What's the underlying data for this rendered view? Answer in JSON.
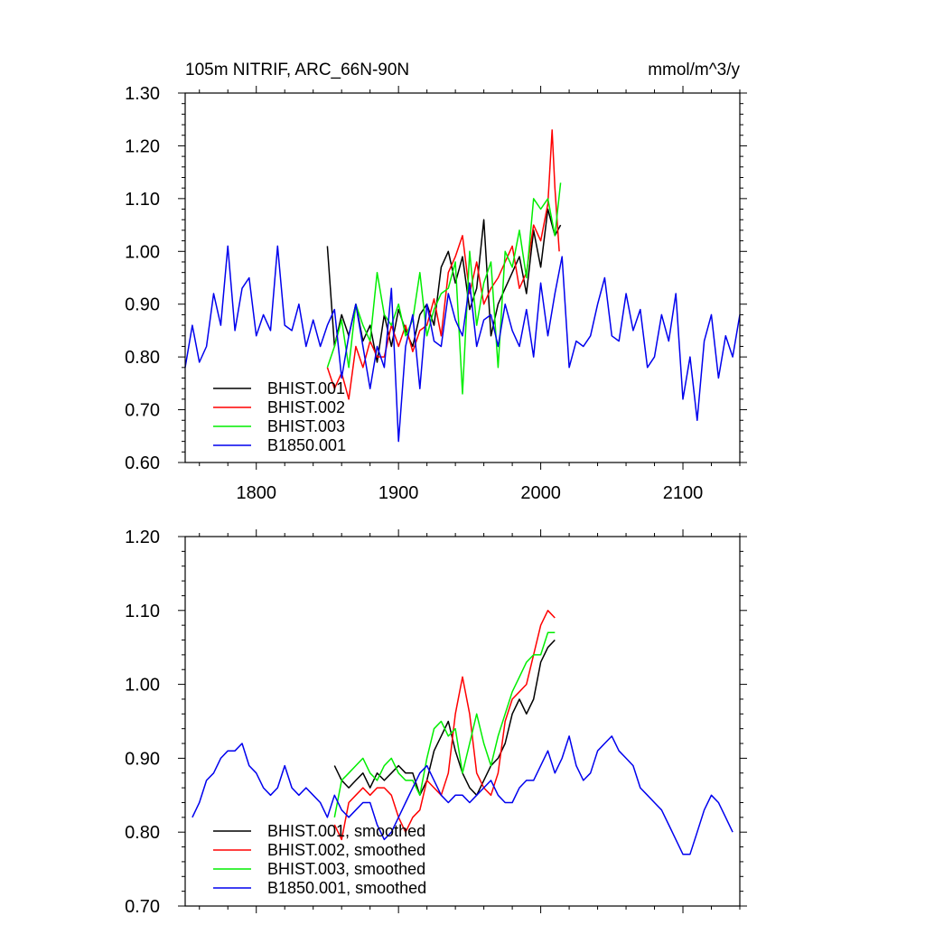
{
  "chart_data": [
    {
      "type": "line",
      "title": "105m NITRIF, ARC_66N-90N",
      "units": "mmol/m^3/y",
      "xlim": [
        1750,
        2140
      ],
      "ylim": [
        0.6,
        1.3
      ],
      "xticks": [
        1800,
        1900,
        2000,
        2100
      ],
      "xtick_labels": [
        "1800",
        "1900",
        "2000",
        "2100"
      ],
      "yticks": [
        0.6,
        0.7,
        0.8,
        0.9,
        1.0,
        1.1,
        1.2,
        1.3
      ],
      "ytick_labels": [
        "0.60",
        "0.70",
        "0.80",
        "0.90",
        "1.00",
        "1.10",
        "1.20",
        "1.30"
      ],
      "legend": "bottom-left",
      "series": [
        {
          "name": "BHIST.001",
          "color": "#000000",
          "x": [
            1850,
            1855,
            1860,
            1865,
            1870,
            1875,
            1880,
            1885,
            1890,
            1895,
            1900,
            1905,
            1910,
            1915,
            1920,
            1925,
            1930,
            1935,
            1940,
            1945,
            1950,
            1955,
            1960,
            1965,
            1970,
            1975,
            1980,
            1985,
            1990,
            1995,
            2000,
            2005,
            2010,
            2014
          ],
          "y": [
            1.01,
            0.82,
            0.88,
            0.84,
            0.9,
            0.83,
            0.86,
            0.79,
            0.88,
            0.82,
            0.89,
            0.85,
            0.82,
            0.88,
            0.9,
            0.86,
            0.97,
            1.0,
            0.94,
            0.99,
            0.89,
            0.93,
            1.06,
            0.84,
            0.9,
            0.93,
            0.96,
            0.99,
            0.92,
            1.04,
            0.97,
            1.08,
            1.03,
            1.05
          ]
        },
        {
          "name": "BHIST.002",
          "color": "#ff0000",
          "x": [
            1850,
            1855,
            1860,
            1865,
            1870,
            1875,
            1880,
            1885,
            1890,
            1895,
            1900,
            1905,
            1910,
            1915,
            1920,
            1925,
            1930,
            1935,
            1940,
            1945,
            1950,
            1955,
            1960,
            1965,
            1970,
            1975,
            1980,
            1985,
            1990,
            1995,
            2000,
            2005,
            2008,
            2010,
            2013
          ],
          "y": [
            0.78,
            0.74,
            0.77,
            0.72,
            0.82,
            0.78,
            0.83,
            0.8,
            0.8,
            0.86,
            0.82,
            0.86,
            0.81,
            0.85,
            0.86,
            0.91,
            0.84,
            0.96,
            0.99,
            1.03,
            0.92,
            0.98,
            0.9,
            0.93,
            0.95,
            0.98,
            1.01,
            0.93,
            0.96,
            1.05,
            1.02,
            1.09,
            1.23,
            1.12,
            1.0
          ]
        },
        {
          "name": "BHIST.003",
          "color": "#00ee00",
          "x": [
            1850,
            1855,
            1860,
            1865,
            1870,
            1875,
            1880,
            1885,
            1890,
            1895,
            1900,
            1905,
            1910,
            1915,
            1920,
            1925,
            1930,
            1935,
            1940,
            1945,
            1950,
            1955,
            1960,
            1965,
            1970,
            1975,
            1980,
            1985,
            1990,
            1995,
            2000,
            2005,
            2010,
            2014
          ],
          "y": [
            0.78,
            0.82,
            0.87,
            0.78,
            0.9,
            0.86,
            0.83,
            0.96,
            0.88,
            0.86,
            0.9,
            0.84,
            0.87,
            0.96,
            0.84,
            0.89,
            0.92,
            0.93,
            0.98,
            0.73,
            1.0,
            0.86,
            0.94,
            0.98,
            0.78,
            1.0,
            0.97,
            1.04,
            0.95,
            1.1,
            1.08,
            1.1,
            1.03,
            1.13
          ]
        },
        {
          "name": "B1850.001",
          "color": "#0000ee",
          "x": [
            1750,
            1755,
            1760,
            1765,
            1770,
            1775,
            1780,
            1785,
            1790,
            1795,
            1800,
            1805,
            1810,
            1815,
            1820,
            1825,
            1830,
            1835,
            1840,
            1845,
            1850,
            1855,
            1860,
            1865,
            1870,
            1875,
            1880,
            1885,
            1890,
            1895,
            1900,
            1905,
            1910,
            1915,
            1920,
            1925,
            1930,
            1935,
            1940,
            1945,
            1950,
            1955,
            1960,
            1965,
            1970,
            1975,
            1980,
            1985,
            1990,
            1995,
            2000,
            2005,
            2010,
            2015,
            2020,
            2025,
            2030,
            2035,
            2040,
            2045,
            2050,
            2055,
            2060,
            2065,
            2070,
            2075,
            2080,
            2085,
            2090,
            2095,
            2100,
            2105,
            2110,
            2115,
            2120,
            2125,
            2130,
            2135,
            2140
          ],
          "y": [
            0.78,
            0.86,
            0.79,
            0.82,
            0.92,
            0.86,
            1.01,
            0.85,
            0.93,
            0.95,
            0.84,
            0.88,
            0.85,
            1.01,
            0.86,
            0.85,
            0.9,
            0.82,
            0.87,
            0.82,
            0.86,
            0.89,
            0.76,
            0.84,
            0.9,
            0.82,
            0.74,
            0.82,
            0.78,
            0.93,
            0.64,
            0.82,
            0.88,
            0.74,
            0.9,
            0.83,
            0.82,
            0.92,
            0.87,
            0.84,
            0.94,
            0.82,
            0.87,
            0.88,
            0.82,
            0.9,
            0.85,
            0.82,
            0.89,
            0.8,
            0.94,
            0.84,
            0.92,
            0.99,
            0.78,
            0.83,
            0.82,
            0.84,
            0.9,
            0.95,
            0.84,
            0.83,
            0.92,
            0.85,
            0.89,
            0.78,
            0.8,
            0.88,
            0.83,
            0.92,
            0.72,
            0.8,
            0.68,
            0.83,
            0.88,
            0.76,
            0.84,
            0.8,
            0.88
          ]
        }
      ]
    },
    {
      "type": "line",
      "xlim": [
        1750,
        2140
      ],
      "ylim": [
        0.7,
        1.2
      ],
      "xticks": [
        1800,
        1900,
        2000,
        2100
      ],
      "yticks": [
        0.7,
        0.8,
        0.9,
        1.0,
        1.1,
        1.2
      ],
      "ytick_labels": [
        "0.70",
        "0.80",
        "0.90",
        "1.00",
        "1.10",
        "1.20"
      ],
      "legend": "bottom-left",
      "series": [
        {
          "name": "BHIST.001, smoothed",
          "color": "#000000",
          "x": [
            1855,
            1860,
            1865,
            1870,
            1875,
            1880,
            1885,
            1890,
            1895,
            1900,
            1905,
            1910,
            1915,
            1920,
            1925,
            1930,
            1935,
            1940,
            1945,
            1950,
            1955,
            1960,
            1965,
            1970,
            1975,
            1980,
            1985,
            1990,
            1995,
            2000,
            2005,
            2010
          ],
          "y": [
            0.89,
            0.87,
            0.86,
            0.87,
            0.88,
            0.86,
            0.88,
            0.87,
            0.88,
            0.89,
            0.88,
            0.88,
            0.85,
            0.87,
            0.91,
            0.93,
            0.95,
            0.91,
            0.88,
            0.86,
            0.85,
            0.87,
            0.89,
            0.9,
            0.92,
            0.96,
            0.98,
            0.96,
            0.98,
            1.03,
            1.05,
            1.06
          ]
        },
        {
          "name": "BHIST.002, smoothed",
          "color": "#ff0000",
          "x": [
            1855,
            1860,
            1865,
            1870,
            1875,
            1880,
            1885,
            1890,
            1895,
            1900,
            1905,
            1910,
            1915,
            1920,
            1925,
            1930,
            1935,
            1940,
            1945,
            1950,
            1955,
            1960,
            1965,
            1970,
            1975,
            1980,
            1985,
            1990,
            1995,
            2000,
            2005,
            2010
          ],
          "y": [
            0.81,
            0.79,
            0.84,
            0.85,
            0.86,
            0.85,
            0.86,
            0.86,
            0.85,
            0.82,
            0.8,
            0.82,
            0.83,
            0.87,
            0.86,
            0.85,
            0.88,
            0.96,
            1.01,
            0.96,
            0.88,
            0.86,
            0.85,
            0.88,
            0.95,
            0.98,
            0.99,
            1.0,
            1.04,
            1.08,
            1.1,
            1.09
          ]
        },
        {
          "name": "BHIST.003, smoothed",
          "color": "#00ee00",
          "x": [
            1855,
            1860,
            1865,
            1870,
            1875,
            1880,
            1885,
            1890,
            1895,
            1900,
            1905,
            1910,
            1915,
            1920,
            1925,
            1930,
            1935,
            1940,
            1945,
            1950,
            1955,
            1960,
            1965,
            1970,
            1975,
            1980,
            1985,
            1990,
            1995,
            2000,
            2005,
            2010
          ],
          "y": [
            0.82,
            0.87,
            0.88,
            0.89,
            0.9,
            0.88,
            0.87,
            0.89,
            0.9,
            0.88,
            0.87,
            0.87,
            0.85,
            0.9,
            0.94,
            0.95,
            0.93,
            0.94,
            0.88,
            0.92,
            0.96,
            0.92,
            0.89,
            0.93,
            0.96,
            0.99,
            1.01,
            1.03,
            1.04,
            1.04,
            1.07,
            1.07
          ]
        },
        {
          "name": "B1850.001, smoothed",
          "color": "#0000ee",
          "x": [
            1755,
            1760,
            1765,
            1770,
            1775,
            1780,
            1785,
            1790,
            1795,
            1800,
            1805,
            1810,
            1815,
            1820,
            1825,
            1830,
            1835,
            1840,
            1845,
            1850,
            1855,
            1860,
            1865,
            1870,
            1875,
            1880,
            1885,
            1890,
            1895,
            1900,
            1905,
            1910,
            1915,
            1920,
            1925,
            1930,
            1935,
            1940,
            1945,
            1950,
            1955,
            1960,
            1965,
            1970,
            1975,
            1980,
            1985,
            1990,
            1995,
            2000,
            2005,
            2010,
            2015,
            2020,
            2025,
            2030,
            2035,
            2040,
            2045,
            2050,
            2055,
            2060,
            2065,
            2070,
            2075,
            2080,
            2085,
            2090,
            2095,
            2100,
            2105,
            2110,
            2115,
            2120,
            2125,
            2130,
            2135
          ],
          "y": [
            0.82,
            0.84,
            0.87,
            0.88,
            0.9,
            0.91,
            0.91,
            0.92,
            0.89,
            0.88,
            0.86,
            0.85,
            0.86,
            0.89,
            0.86,
            0.85,
            0.86,
            0.85,
            0.84,
            0.82,
            0.85,
            0.83,
            0.82,
            0.83,
            0.84,
            0.84,
            0.81,
            0.79,
            0.8,
            0.82,
            0.84,
            0.86,
            0.88,
            0.89,
            0.87,
            0.85,
            0.84,
            0.85,
            0.85,
            0.84,
            0.85,
            0.86,
            0.87,
            0.85,
            0.84,
            0.84,
            0.86,
            0.87,
            0.87,
            0.89,
            0.91,
            0.88,
            0.9,
            0.93,
            0.89,
            0.87,
            0.88,
            0.91,
            0.92,
            0.93,
            0.91,
            0.9,
            0.89,
            0.86,
            0.85,
            0.84,
            0.83,
            0.81,
            0.79,
            0.77,
            0.77,
            0.8,
            0.83,
            0.85,
            0.84,
            0.82,
            0.8
          ]
        }
      ]
    }
  ]
}
